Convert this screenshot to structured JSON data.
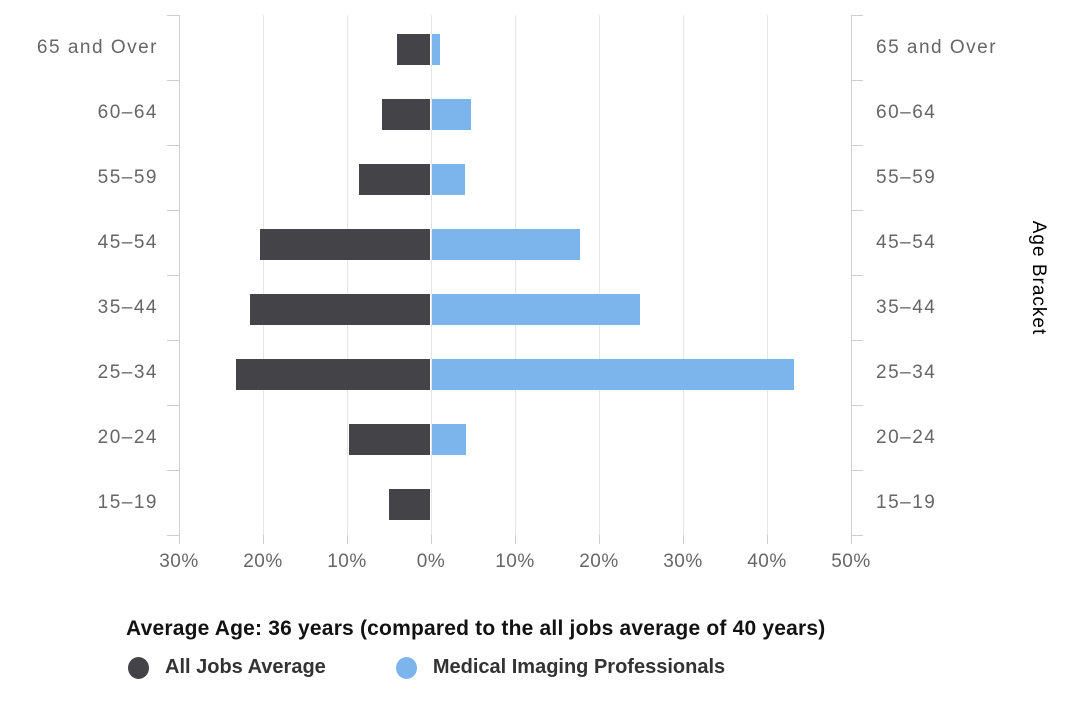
{
  "chart_data": {
    "type": "bar",
    "subtype": "horizontal-diverging-pyramid",
    "title": "Average Age: 36 years (compared to the all jobs average of 40 years)",
    "yaxis_title": "Age Bracket",
    "categories": [
      "65 and Over",
      "60–64",
      "55–59",
      "45–54",
      "35–44",
      "25–34",
      "20–24",
      "15–19"
    ],
    "series": [
      {
        "name": "All Jobs Average",
        "color": "#434348",
        "direction": "left",
        "values_pct": [
          3.9,
          5.7,
          8.5,
          20.2,
          21.4,
          23.1,
          9.6,
          4.9
        ]
      },
      {
        "name": "Medical Imaging Professionals",
        "color": "#7cb5ec",
        "direction": "right",
        "values_pct": [
          0.9,
          4.7,
          3.9,
          17.6,
          24.8,
          43.1,
          4.0,
          0
        ]
      }
    ],
    "xaxis": {
      "unit": "%",
      "min": -30,
      "max": 50,
      "tick_values": [
        -30,
        -20,
        -10,
        0,
        10,
        20,
        30,
        40,
        50
      ],
      "tick_labels": [
        "30%",
        "20%",
        "10%",
        "0%",
        "10%",
        "20%",
        "30%",
        "40%",
        "50%"
      ],
      "grid": true
    },
    "legend_position": "bottom-left"
  },
  "colors": {
    "background": "#ffffff",
    "grid": "#e6e6e6",
    "axis_line": "#ccced6",
    "tick": "#cccccc",
    "axis_text": "#666666",
    "title_text": "#121212",
    "legend_text": "#333333"
  }
}
